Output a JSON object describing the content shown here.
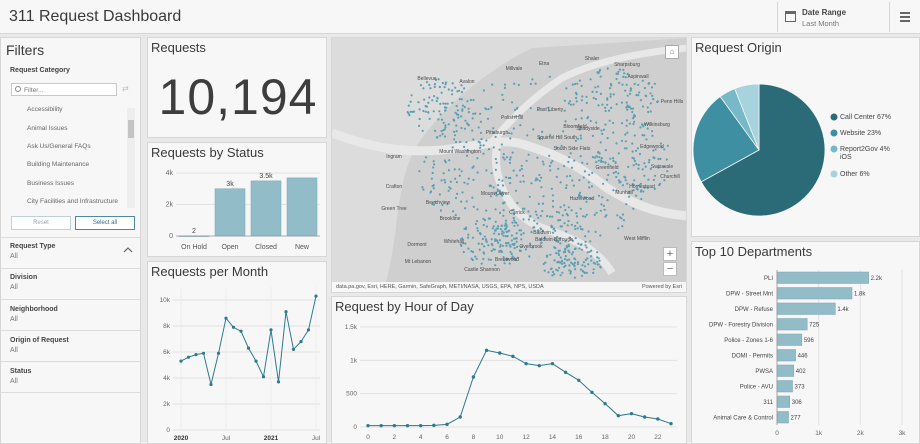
{
  "header": {
    "title": "311 Request Dashboard",
    "date_range_label": "Date Range",
    "date_range_value": "Last Month"
  },
  "filters": {
    "title": "Filters",
    "category_label": "Request Category",
    "search_placeholder": "Filter...",
    "category_items": [
      "Accessibility",
      "Animal Issues",
      "Ask Us/General FAQs",
      "Building Maintenance",
      "Business Issues",
      "City Facilities and Infrastructure"
    ],
    "reset_label": "Reset",
    "select_all_label": "Select all",
    "groups": [
      {
        "label": "Request Type",
        "value": "All"
      },
      {
        "label": "Division",
        "value": "All"
      },
      {
        "label": "Neighborhood",
        "value": "All"
      },
      {
        "label": "Origin of Request",
        "value": "All"
      },
      {
        "label": "Status",
        "value": "All"
      }
    ]
  },
  "requests": {
    "title": "Requests",
    "value": "10,194"
  },
  "status_chart": {
    "title": "Requests by Status",
    "chart_data": {
      "type": "bar",
      "categories": [
        "On Hold",
        "Open",
        "Closed",
        "New"
      ],
      "values": [
        2,
        3000,
        3500,
        3690
      ],
      "data_labels": [
        "2",
        "3k",
        "3.5k",
        ""
      ],
      "yticks": [
        "0",
        "2k",
        "4k"
      ],
      "ylim": [
        0,
        4000
      ],
      "bar_color": "#92bcc7"
    }
  },
  "month_chart": {
    "title": "Requests per Month",
    "chart_data": {
      "type": "line",
      "x_labels": [
        "2020",
        "Jul",
        "2021",
        "Jul"
      ],
      "values": [
        5300,
        5600,
        5800,
        5900,
        3500,
        5900,
        8600,
        7900,
        7600,
        6300,
        5300,
        4100,
        7700,
        3700,
        9100,
        6200,
        6800,
        7700,
        10300
      ],
      "yticks": [
        "0",
        "2k",
        "4k",
        "6k",
        "8k",
        "10k"
      ],
      "ylim": [
        0,
        11000
      ],
      "line_color": "#2e7a8e"
    }
  },
  "map": {
    "labels": [
      "Pittsburgh",
      "Mount Washington",
      "South Side Flats",
      "Squirrel Hill South",
      "East Liberty",
      "Polish Hill",
      "Bloomfield",
      "Shadyside",
      "Mount Oliver",
      "Brentwood",
      "Carrick",
      "Greenfield",
      "Hazelwood",
      "Baldwin",
      "Whitehall",
      "Castle Shannon",
      "Munhall",
      "Homestead",
      "Wilkinsburg",
      "Edgewood",
      "Swissvale",
      "Crafton",
      "Bellevue",
      "Millvale",
      "Etna",
      "Shaler",
      "Dormont",
      "Mt Lebanon",
      "Green Tree",
      "Ingram",
      "Sharpsburg",
      "Avalon",
      "Penn Hills",
      "Churchill",
      "Aspinwall",
      "Baldwin Borough",
      "Brookline",
      "Beechview",
      "Overbrook",
      "West Mifflin"
    ],
    "attribution": "data.pa.gov, Esri, HERE, Garmin, SafeGraph, METI/NASA, USGS, EPA, NPS, USDA",
    "powered_by": "Powered by Esri",
    "zoom_in": "+",
    "zoom_out": "−",
    "home_icon": "home-icon",
    "dot_color": "#5b9fb2"
  },
  "hour_chart": {
    "title": "Request by Hour of Day",
    "chart_data": {
      "type": "line",
      "x": [
        0,
        1,
        2,
        3,
        4,
        5,
        6,
        7,
        8,
        9,
        10,
        11,
        12,
        13,
        14,
        15,
        16,
        17,
        18,
        19,
        20,
        21,
        22,
        23
      ],
      "xticks": [
        "0",
        "2",
        "4",
        "6",
        "8",
        "10",
        "12",
        "14",
        "16",
        "18",
        "20",
        "22"
      ],
      "values": [
        20,
        20,
        20,
        20,
        20,
        25,
        40,
        150,
        750,
        1150,
        1110,
        1060,
        950,
        920,
        950,
        820,
        700,
        520,
        350,
        170,
        200,
        150,
        120,
        50
      ],
      "yticks": [
        "0",
        "500",
        "1k",
        "1.5k"
      ],
      "ylim": [
        0,
        1500
      ],
      "line_color": "#2e7a8e"
    }
  },
  "origin_chart": {
    "title": "Request Origin",
    "chart_data": {
      "type": "pie",
      "slices": [
        {
          "label": "Call Center 67%",
          "value": 67,
          "color": "#2b6b78"
        },
        {
          "label": "Website 23%",
          "value": 23,
          "color": "#3d8fa1"
        },
        {
          "label": "Report2Gov iOS 4%",
          "value": 4,
          "color": "#78b9c7"
        },
        {
          "label": "Other 6%",
          "value": 6,
          "color": "#a6d3dd"
        }
      ]
    }
  },
  "dept_chart": {
    "title": "Top 10 Departments",
    "chart_data": {
      "type": "bar",
      "orientation": "horizontal",
      "categories": [
        "PLI",
        "DPW - Street Mnt",
        "DPW - Refuse",
        "DPW - Forestry Division",
        "Police - Zones 1-6",
        "DOMI - Permits",
        "PWSA",
        "Police - AVU",
        "311",
        "Animal Care & Control"
      ],
      "values": [
        2200,
        1800,
        1400,
        725,
        596,
        446,
        402,
        373,
        306,
        277
      ],
      "data_labels": [
        "2.2k",
        "1.8k",
        "1.4k",
        "725",
        "596",
        "446",
        "402",
        "373",
        "306",
        "277"
      ],
      "xticks": [
        "0",
        "1k",
        "2k",
        "3k"
      ],
      "xlim": [
        0,
        3000
      ],
      "bar_color": "#92bcc7"
    }
  }
}
